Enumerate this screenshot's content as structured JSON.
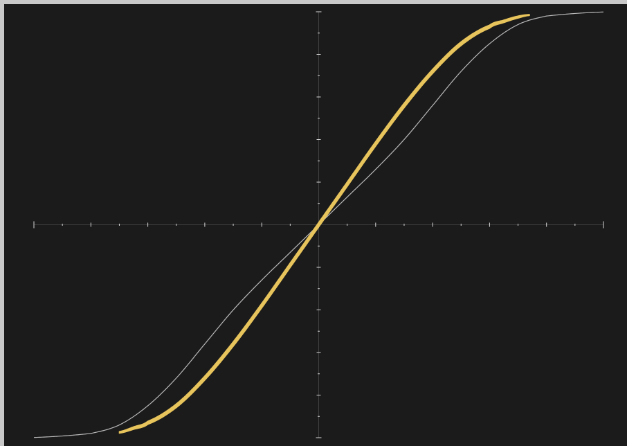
{
  "colors": {
    "background": "#1b1b1b",
    "frame": "#c9c9c9",
    "axis": "#d8d8d8",
    "curve_thin": "#b9b9b9",
    "curve_band": "#e8c45c"
  },
  "chart_data": {
    "type": "line",
    "title": "",
    "xlabel": "",
    "ylabel": "",
    "grid": false,
    "legend": "none",
    "xlim": [
      -1,
      1
    ],
    "ylim": [
      -1,
      1
    ],
    "x_ticks": {
      "major_step": 0.2,
      "minor_step": 0.1,
      "labels_shown": false
    },
    "y_ticks": {
      "major_step": 0.2,
      "minor_step": 0.1,
      "labels_shown": false
    },
    "series": [
      {
        "style": "thin-line",
        "x": [
          -1,
          -0.8,
          -0.7,
          -0.6,
          -0.5,
          -0.4,
          -0.3,
          -0.2,
          -0.1,
          0,
          0.1,
          0.2,
          0.3,
          0.4,
          0.5,
          0.6,
          0.7,
          0.8,
          1
        ],
        "y": [
          -0.999,
          -0.98,
          -0.94,
          -0.85,
          -0.72,
          -0.56,
          -0.4,
          -0.26,
          -0.13,
          0,
          0.13,
          0.26,
          0.4,
          0.56,
          0.72,
          0.85,
          0.94,
          0.98,
          0.999
        ]
      },
      {
        "style": "band",
        "x_start": -0.7,
        "x_end": 0.74,
        "x": [
          -0.7,
          -0.65,
          -0.6,
          -0.5,
          -0.4,
          -0.3,
          -0.2,
          -0.1,
          0,
          0.1,
          0.2,
          0.3,
          0.4,
          0.5,
          0.6,
          0.65,
          0.7,
          0.74
        ],
        "y": [
          -0.975,
          -0.955,
          -0.93,
          -0.85,
          -0.72,
          -0.56,
          -0.38,
          -0.19,
          0,
          0.19,
          0.38,
          0.56,
          0.72,
          0.85,
          0.93,
          0.955,
          0.975,
          0.985
        ],
        "band_thickness": [
          0.008,
          0.012,
          0.015,
          0.018,
          0.02,
          0.022,
          0.022,
          0.022,
          0.022,
          0.022,
          0.022,
          0.022,
          0.02,
          0.018,
          0.015,
          0.012,
          0.01,
          0.005
        ]
      }
    ]
  }
}
